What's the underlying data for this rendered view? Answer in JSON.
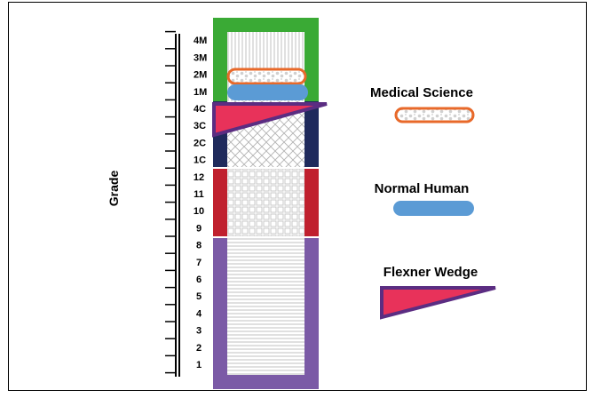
{
  "axis": {
    "label": "Grade",
    "grades": [
      "1",
      "2",
      "3",
      "4",
      "5",
      "6",
      "7",
      "8",
      "9",
      "10",
      "11",
      "12",
      "1C",
      "2C",
      "3C",
      "4C",
      "1M",
      "2M",
      "3M",
      "4M"
    ]
  },
  "legend": {
    "medical_science": "Medical Science",
    "normal_human": "Normal Human",
    "flexner_wedge": "Flexner Wedge"
  },
  "colors": {
    "medical": "#3aaa35",
    "college": "#1f2a5c",
    "high_school": "#c0202e",
    "primary": "#7b5aa6",
    "orange_outline": "#e8692a",
    "blue_pill": "#5b9bd5",
    "wedge_fill": "#e8325a",
    "wedge_outline": "#5b2d82"
  }
}
